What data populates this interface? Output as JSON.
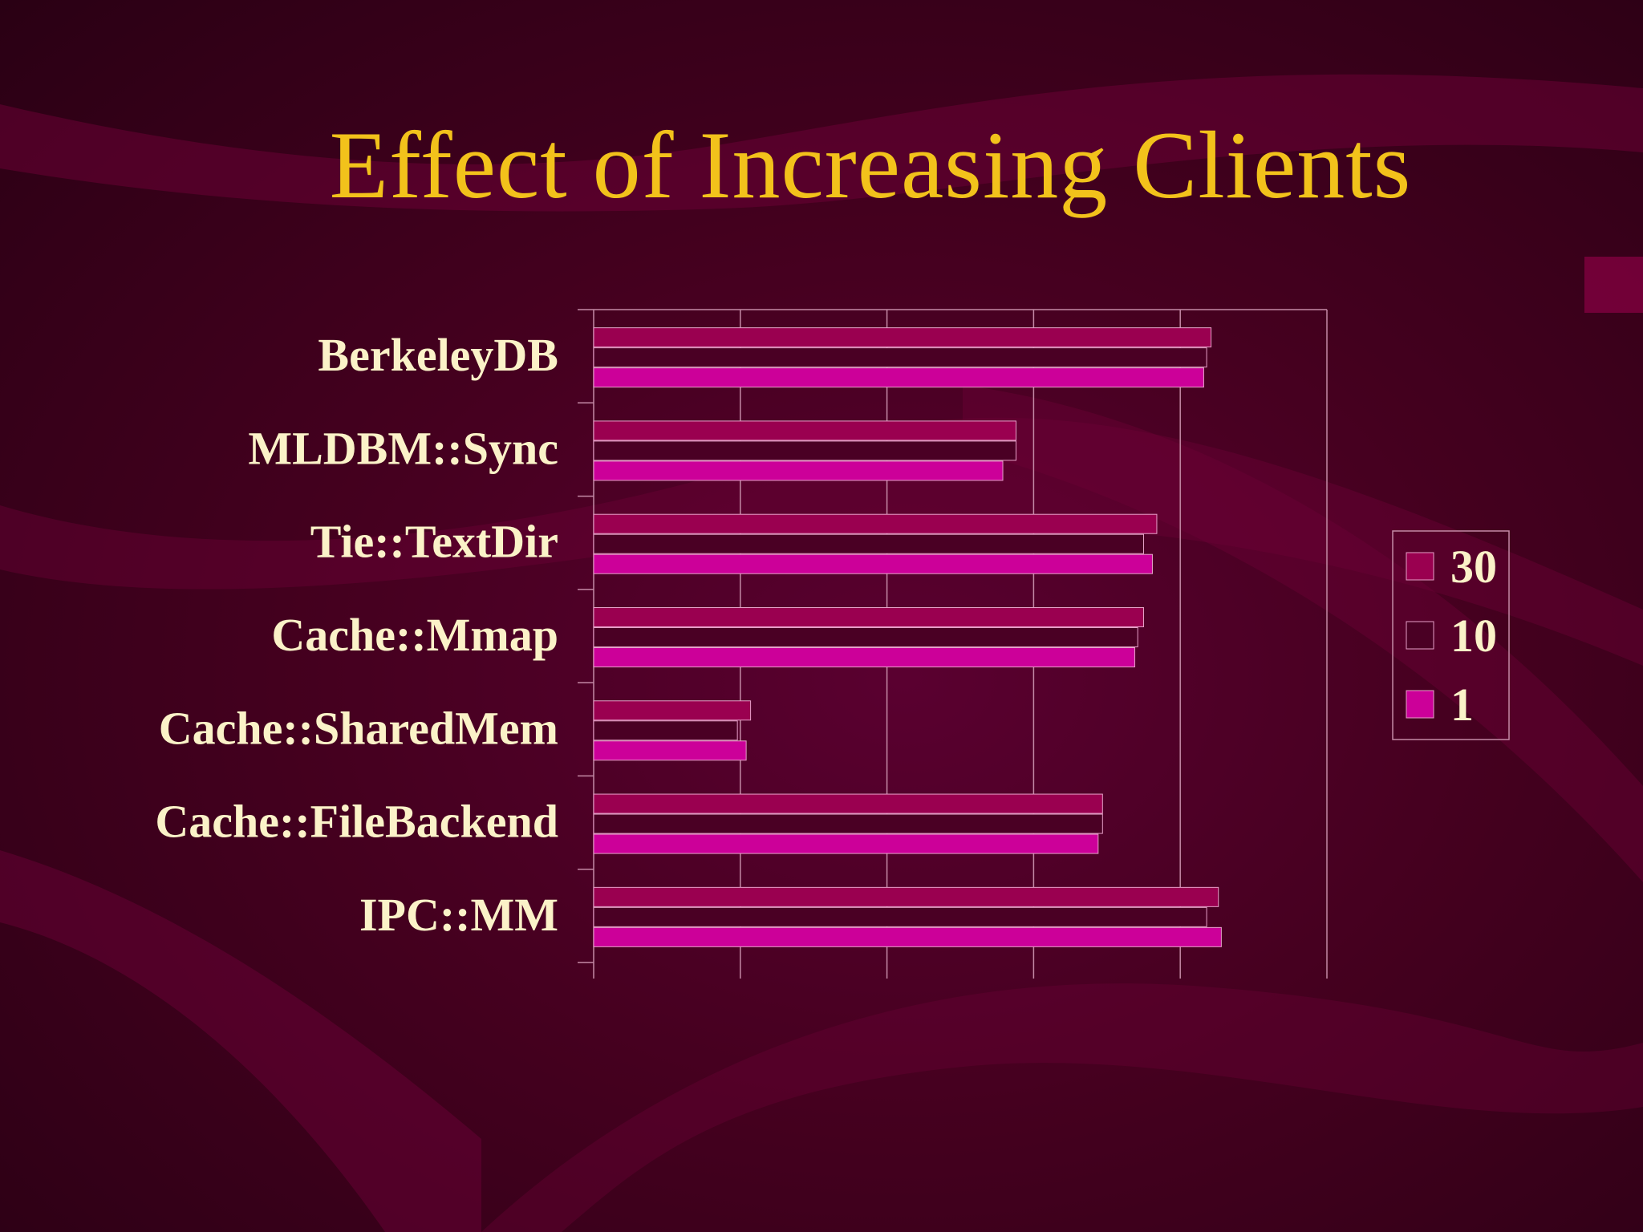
{
  "slide": {
    "title": "Effect of Increasing Clients"
  },
  "colors": {
    "title": "#f2c21b",
    "labels": "#fbf2c8",
    "series_30": "#9a0050",
    "series_10": "#4a0024",
    "series_1": "#cc0099",
    "gridline": "#c48aa6"
  },
  "chart_data": {
    "type": "bar",
    "orientation": "horizontal",
    "title": "Effect of Increasing Clients",
    "xlabel": "",
    "ylabel": "",
    "xlim": [
      0,
      5
    ],
    "grid": true,
    "legend_position": "right",
    "categories": [
      "BerkeleyDB",
      "MLDBM::Sync",
      "Tie::TextDir",
      "Cache::Mmap",
      "Cache::SharedMem",
      "Cache::FileBackend",
      "IPC::MM"
    ],
    "series": [
      {
        "name": "30",
        "color": "#9a0050",
        "values": [
          4.21,
          2.88,
          3.84,
          3.75,
          1.07,
          3.47,
          4.26
        ]
      },
      {
        "name": "10",
        "color": "#4a0024",
        "values": [
          4.18,
          2.88,
          3.75,
          3.71,
          0.98,
          3.47,
          4.18
        ]
      },
      {
        "name": "1",
        "color": "#cc0099",
        "values": [
          4.16,
          2.79,
          3.81,
          3.69,
          1.04,
          3.44,
          4.28
        ]
      }
    ]
  }
}
